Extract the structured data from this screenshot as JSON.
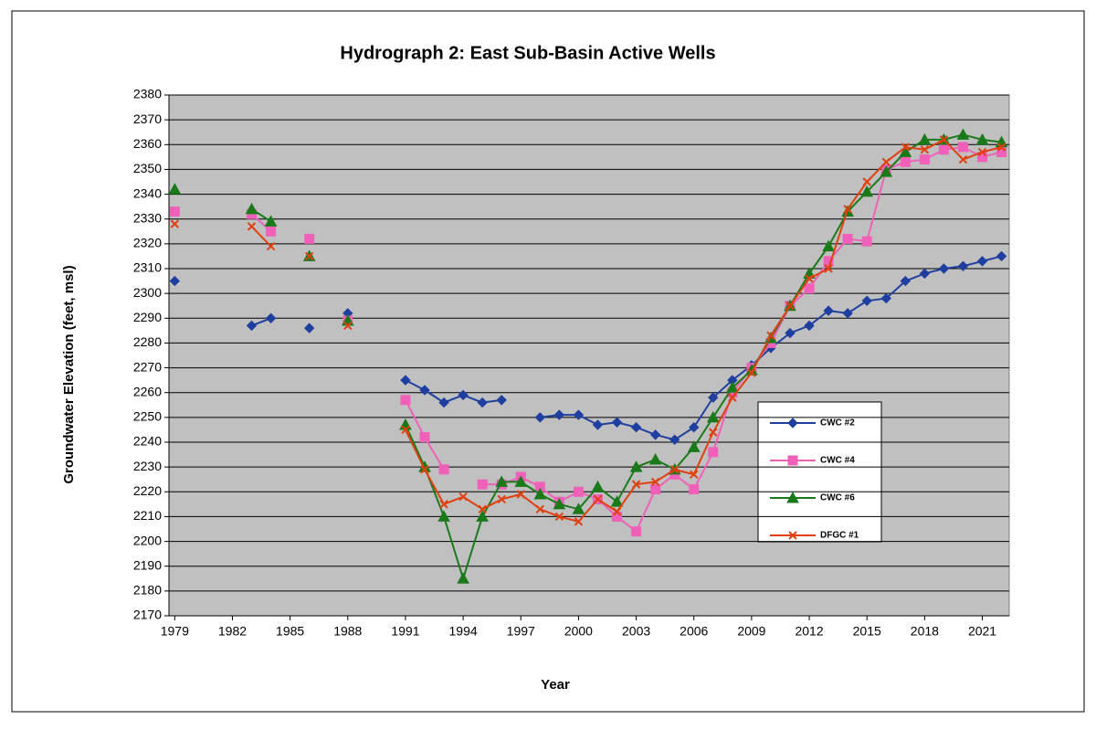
{
  "chart_data": {
    "type": "line",
    "title": "Hydrograph 2: East Sub-Basin Active Wells",
    "x_label": "Year",
    "y_label": "Groundwater Elevation (feet, msl)",
    "x": [
      1979,
      1980,
      1981,
      1982,
      1983,
      1984,
      1985,
      1986,
      1987,
      1988,
      1989,
      1990,
      1991,
      1992,
      1993,
      1994,
      1995,
      1996,
      1997,
      1998,
      1999,
      2000,
      2001,
      2002,
      2003,
      2004,
      2005,
      2006,
      2007,
      2008,
      2009,
      2010,
      2011,
      2012,
      2013,
      2014,
      2015,
      2016,
      2017,
      2018,
      2019,
      2020,
      2021,
      2022
    ],
    "series": [
      {
        "name": "CWC #2",
        "color": "#1f3fa0",
        "marker": "diamond",
        "values": [
          2305,
          null,
          null,
          null,
          2287,
          2290,
          null,
          2286,
          null,
          2292,
          null,
          null,
          2265,
          2261,
          2256,
          2259,
          2256,
          2257,
          null,
          2250,
          2251,
          2251,
          2247,
          2248,
          2246,
          2243,
          2241,
          2246,
          2258,
          2265,
          2271,
          2278,
          2284,
          2287,
          2293,
          2292,
          2297,
          2298,
          2305,
          2308,
          2310,
          2311,
          2313,
          2315
        ]
      },
      {
        "name": "CWC #4",
        "color": "#f060b8",
        "marker": "square",
        "values": [
          2333,
          null,
          null,
          null,
          2332,
          2325,
          null,
          2322,
          null,
          2289,
          null,
          null,
          2257,
          2242,
          2229,
          null,
          2223,
          2223,
          2226,
          2222,
          2216,
          2220,
          2217,
          2210,
          2204,
          2221,
          2227,
          2221,
          2236,
          2260,
          2270,
          2280,
          2295,
          2302,
          2313,
          2322,
          2321,
          2350,
          2353,
          2354,
          2358,
          2359,
          2355,
          2357
        ]
      },
      {
        "name": "CWC #6",
        "color": "#1a7a1a",
        "marker": "triangle",
        "values": [
          2342,
          null,
          null,
          null,
          2334,
          2329,
          null,
          2315,
          null,
          2289,
          null,
          null,
          2247,
          2230,
          2210,
          2185,
          2210,
          2224,
          2224,
          2219,
          2215,
          2213,
          2222,
          2216,
          2230,
          2233,
          2229,
          2238,
          2250,
          2262,
          2269,
          2282,
          2295,
          2308,
          2319,
          2333,
          2341,
          2349,
          2357,
          2362,
          2362,
          2364,
          2362,
          2361
        ]
      },
      {
        "name": "DFGC #1",
        "color": "#e04010",
        "marker": "x",
        "values": [
          2328,
          null,
          null,
          null,
          2327,
          2319,
          null,
          2315,
          null,
          2287,
          null,
          null,
          2245,
          2229,
          2215,
          2218,
          2213,
          2217,
          2219,
          2213,
          2210,
          2208,
          2217,
          2212,
          2223,
          2224,
          2229,
          2227,
          2244,
          2258,
          2268,
          2283,
          2295,
          2306,
          2310,
          2334,
          2345,
          2353,
          2359,
          2358,
          2362,
          2354,
          2357,
          2359
        ]
      }
    ],
    "xlim": [
      1978.7,
      2022.4
    ],
    "xticks": [
      1979,
      1982,
      1985,
      1988,
      1991,
      1994,
      1997,
      2000,
      2003,
      2006,
      2009,
      2012,
      2015,
      2018,
      2021
    ],
    "ylim": [
      2170,
      2380
    ],
    "yticks": [
      2170,
      2180,
      2190,
      2200,
      2210,
      2220,
      2230,
      2240,
      2250,
      2260,
      2270,
      2280,
      2290,
      2300,
      2310,
      2320,
      2330,
      2340,
      2350,
      2360,
      2370,
      2380
    ],
    "grid": true
  }
}
